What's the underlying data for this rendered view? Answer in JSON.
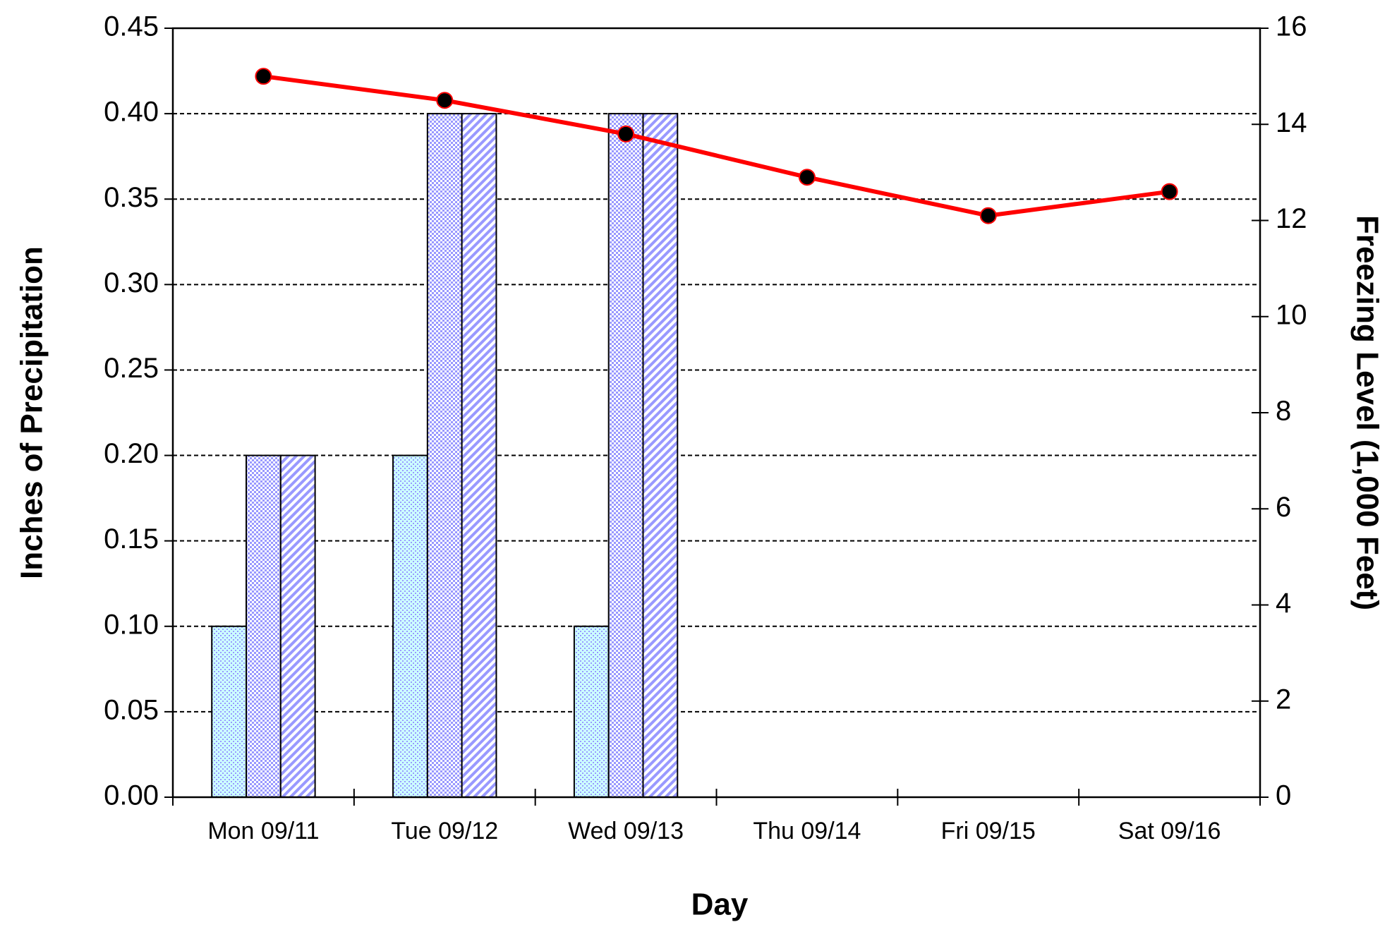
{
  "chart_data": {
    "type": "bar",
    "xlabel": "Day",
    "ylabel": "Inches of Precipitation",
    "y2label": "Freezing Level (1,000 Feet)",
    "categories": [
      "Mon 09/11",
      "Tue 09/12",
      "Wed 09/13",
      "Thu 09/14",
      "Fri 09/15",
      "Sat 09/16"
    ],
    "series": [
      {
        "color": "#ccffff",
        "pattern": "dots-cyan",
        "values": [
          0.1,
          0.2,
          0.1,
          0,
          0,
          0
        ]
      },
      {
        "color": "#9999ff",
        "pattern": "dots-blue",
        "values": [
          0.2,
          0.4,
          0.4,
          0,
          0,
          0
        ]
      },
      {
        "color": "#9999ff",
        "pattern": "hatch-blue",
        "values": [
          0.2,
          0.4,
          0.4,
          0,
          0,
          0
        ]
      },
      {
        "type": "line",
        "axis": "y2",
        "color": "#ff0000",
        "values": [
          15.0,
          14.5,
          13.8,
          12.9,
          12.1,
          12.6
        ]
      }
    ],
    "ylim": [
      0,
      0.45
    ],
    "yticks": [
      {
        "value": 0,
        "label": "0.00"
      },
      0.05,
      {
        "value": 0.1,
        "label": "0.10"
      },
      0.15,
      {
        "value": 0.2,
        "label": "0.20"
      },
      0.25,
      {
        "value": 0.3,
        "label": "0.30"
      },
      0.35,
      {
        "value": 0.4,
        "label": "0.40"
      },
      0.45
    ],
    "y2lim": [
      0,
      16
    ],
    "y2ticks": [
      0,
      2,
      4,
      6,
      8,
      10,
      12,
      14,
      16
    ],
    "grid": true
  }
}
